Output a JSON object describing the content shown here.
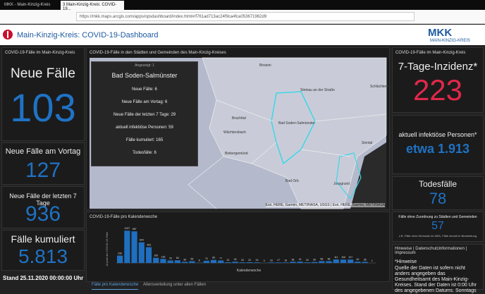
{
  "browser": {
    "tabs": [
      "MKK - Main-Kinzig-Kreis",
      "3 Main-Kinzig-Kreis: COVID-19..."
    ],
    "url": "https://mkk.maps.arcgis.com/apps/opsdashboard/index.html#/f761ad713ac24f9ca4fca053671962d9"
  },
  "header": {
    "title": "Main-Kinzig-Kreis: COVID-19-Dashboard",
    "logo": "MKK",
    "logo_sub": "MAIN-KINZIG-KREIS"
  },
  "left": {
    "heading": "COVID-19-Fälle im Main-Kinzig-Kreis",
    "cards": [
      {
        "label": "Neue Fälle",
        "value": "103"
      },
      {
        "label": "Neue Fälle am Vortag",
        "value": "127"
      },
      {
        "label": "Neue Fälle der letzten 7 Tage",
        "value": "936"
      },
      {
        "label": "Fälle kumuliert",
        "value": "5.813"
      }
    ],
    "stand": "Stand 25.11.2020 00:00:00 Uhr"
  },
  "map": {
    "title": "COVID-19-Fälle in den Städten und Gemeinden des Main-Kinzig-Kreises",
    "places": [
      "Birstein",
      "Steinau an der Straße",
      "Schlüchtern",
      "Bad Soden-Salmünster",
      "Wächtersbach",
      "Brachttal",
      "Biebergemünd",
      "Bad Orb",
      "Jossgrund",
      "Sinntal"
    ],
    "attribution": "Esri, HERE, Garmin, METI/NASA, USGS | Esri, HERE, Garmin, METI/NASA",
    "popup": {
      "count": "Angezeigt: 1",
      "name": "Bad Soden-Salmünster",
      "lines": [
        "Neue Fälle: 6",
        "Neue Fälle am Vortag: 6",
        "Neue Fälle der letzten 7 Tage: 29",
        "aktuell infektiöse Personen: 59",
        "Fälle kumuliert: 165",
        "Todesfälle: 6"
      ]
    }
  },
  "chart_data": {
    "type": "bar",
    "title": "COVID-19-Fälle pro Kalenderwoche",
    "y_label": "Anzahl der COVID-19-Fälle",
    "x_label": "Kalenderwoche",
    "color": "#1f6fc0",
    "ylim": [
      0,
      1100
    ],
    "values": [
      230,
      1007,
      987,
      644,
      493,
      160,
      126,
      78,
      84,
      36,
      55,
      8,
      70,
      95,
      77,
      22,
      40,
      20,
      22,
      19,
      3,
      16,
      17,
      16,
      38,
      41,
      20,
      30,
      58,
      56,
      111,
      106,
      107,
      40,
      35,
      1
    ]
  },
  "tabs": [
    "Fälle pro Kalenderwoche",
    "Altersverteilung unter allen Fällen"
  ],
  "right": {
    "heading": "COVID-19-Fälle im Main-Kinzig-Kreis",
    "incidence_label": "7-Tage-Inzidenz*",
    "incidence": "223",
    "active_label": "aktuell infektiöse Personen*",
    "active": "etwa 1.913",
    "deaths_label": "Todesfälle",
    "deaths": "78",
    "unassigned_label": "Fälle ohne Zuordnung zu Städten und Gemeinden",
    "unassigned": "57",
    "unassigned_note": "z.B. Fälle ohne Wohnsitz im MKK, Fälle derzeit in Bearbeitung",
    "links": "Hinweise | Datenschutzinformationen | Impressum",
    "notes_title": "*Hinweise",
    "notes": "Quelle der Daten ist sofern nicht anders angegeben das Gesundheitsamt des Main-Kinzig-Kreises. Stand der Daten ist 0:00 Uhr des angegebenen Datums. Sonntags"
  }
}
